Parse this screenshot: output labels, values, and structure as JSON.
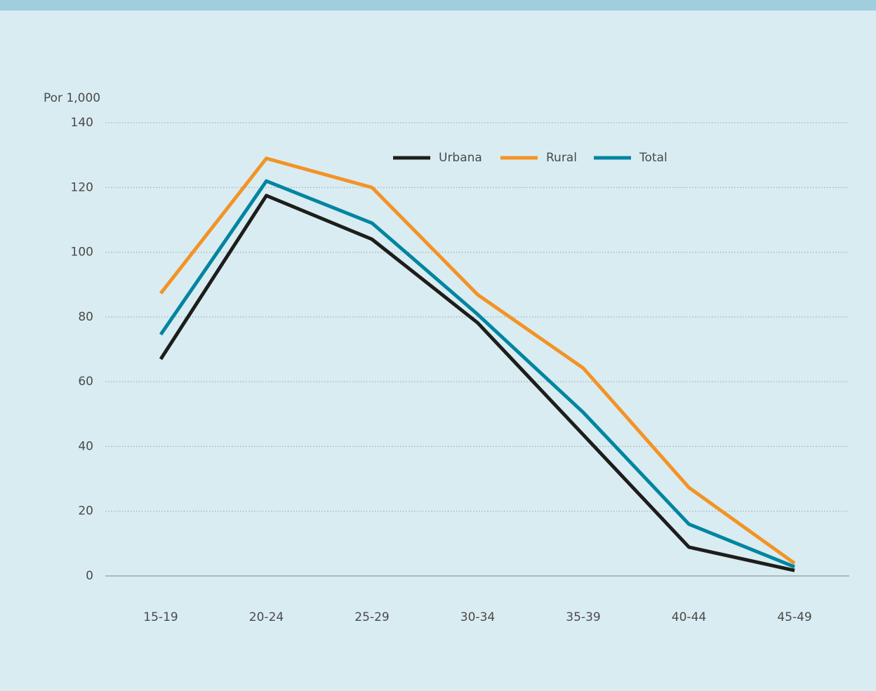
{
  "chart_data": {
    "type": "line",
    "y_axis_label": "Por 1,000",
    "categories": [
      "15-19",
      "20-24",
      "25-29",
      "30-34",
      "35-39",
      "40-44",
      "45-49"
    ],
    "series": [
      {
        "name": "Urbana",
        "color": "#1d1d1b",
        "values": [
          67,
          117.5,
          104,
          78.2,
          43.6,
          8.9,
          1.7
        ]
      },
      {
        "name": "Rural",
        "color": "#f39325",
        "values": [
          87.3,
          129,
          120,
          86.9,
          64.2,
          27.3,
          3.9
        ]
      },
      {
        "name": "Total",
        "color": "#0085a1",
        "values": [
          74.6,
          122,
          109,
          80.8,
          50.5,
          16,
          2.8
        ]
      }
    ],
    "ylim": [
      0,
      140
    ],
    "yticks": [
      0,
      20,
      40,
      60,
      80,
      100,
      120,
      140
    ],
    "grid": true,
    "legend": "top"
  }
}
